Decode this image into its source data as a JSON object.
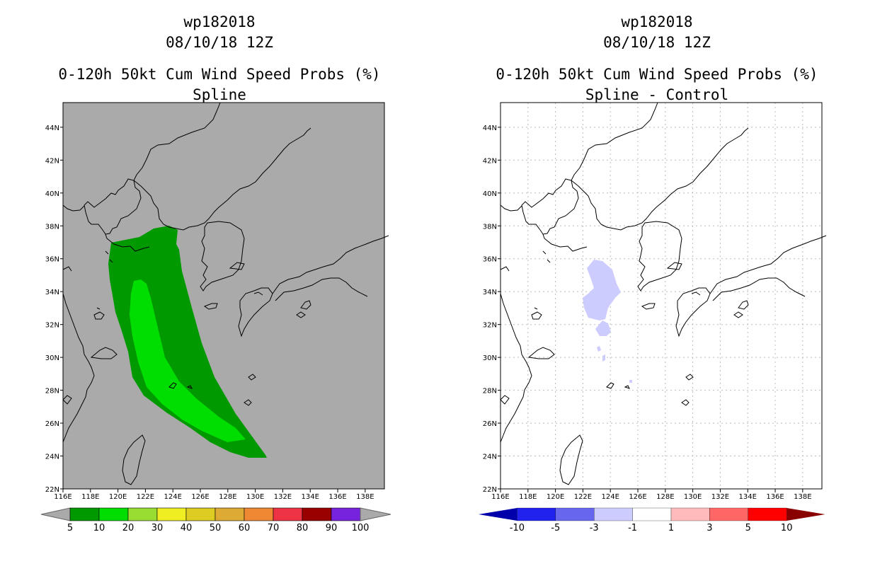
{
  "left": {
    "title_line1": "wp182018",
    "title_line2": "08/10/18 12Z",
    "title_line3": "0-120h 50kt Cum Wind Speed Probs (%)",
    "title_line4": "Spline",
    "background": "#aaaaaa",
    "colorbar": {
      "labels": [
        "5",
        "10",
        "20",
        "30",
        "40",
        "50",
        "60",
        "70",
        "80",
        "90",
        "100"
      ],
      "colors": [
        "#009900",
        "#00dd00",
        "#99dd33",
        "#eeee22",
        "#ddcc22",
        "#ddaa33",
        "#ee8833",
        "#ee3344",
        "#990000",
        "#7722dd"
      ],
      "arrow_color": "#aaaaaa"
    }
  },
  "right": {
    "title_line1": "wp182018",
    "title_line2": "08/10/18 12Z",
    "title_line3": "0-120h 50kt Cum Wind Speed Probs (%)",
    "title_line4": "Spline - Control",
    "background": "#ffffff",
    "colorbar": {
      "labels": [
        "-10",
        "-5",
        "-3",
        "-1",
        "1",
        "3",
        "5",
        "10"
      ],
      "colors": [
        "#0000cc",
        "#2222ee",
        "#6666ee",
        "#ccccff",
        "#ffffff",
        "#ffbbbb",
        "#ff6666",
        "#ff0000",
        "#880000"
      ],
      "left_arrow_color": "#0000aa",
      "right_arrow_color": "#880000"
    }
  },
  "axes": {
    "lon_ticks": [
      "116E",
      "118E",
      "120E",
      "122E",
      "124E",
      "126E",
      "128E",
      "130E",
      "132E",
      "134E",
      "136E",
      "138E"
    ],
    "lat_ticks": [
      "22N",
      "24N",
      "26N",
      "28N",
      "30N",
      "32N",
      "34N",
      "36N",
      "38N",
      "40N",
      "42N",
      "44N"
    ]
  },
  "colors": {
    "prob_5": "#009900",
    "prob_10": "#00dd00",
    "diff_minus_1_3": "#ccccff"
  }
}
